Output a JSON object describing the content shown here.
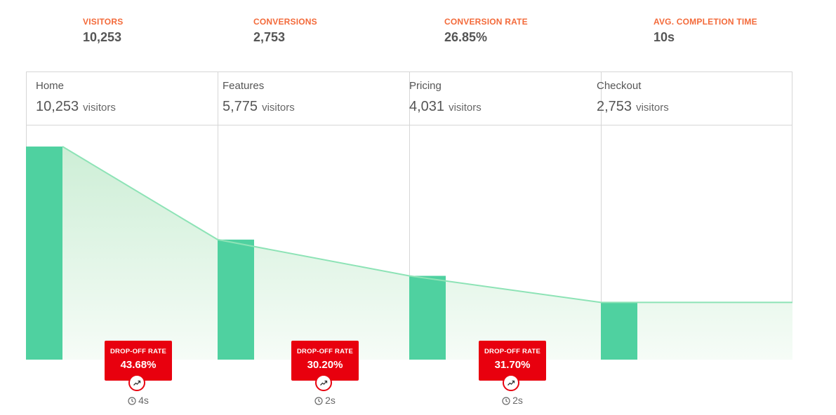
{
  "stats": [
    {
      "label": "VISITORS",
      "value": "10,253"
    },
    {
      "label": "CONVERSIONS",
      "value": "2,753"
    },
    {
      "label": "CONVERSION RATE",
      "value": "26.85%"
    },
    {
      "label": "AVG. COMPLETION TIME",
      "value": "10s"
    }
  ],
  "chart_data": {
    "type": "bar",
    "categories": [
      "Home",
      "Features",
      "Pricing",
      "Checkout"
    ],
    "values": [
      10253,
      5775,
      4031,
      2753
    ],
    "value_labels": [
      "10,253",
      "5,775",
      "4,031",
      "2,753"
    ],
    "unit": "visitors",
    "drop_off_label": "DROP-OFF RATE",
    "drop_off_rates": [
      "43.68%",
      "30.20%",
      "31.70%"
    ],
    "step_times": [
      "4s",
      "2s",
      "2s"
    ],
    "ylim": [
      0,
      11300
    ],
    "colors": {
      "bar": "#4fd1a0",
      "line": "#8de3b6",
      "area": "#d9f4dd",
      "drop": "#e8000e",
      "label": "#f36a3a"
    }
  }
}
